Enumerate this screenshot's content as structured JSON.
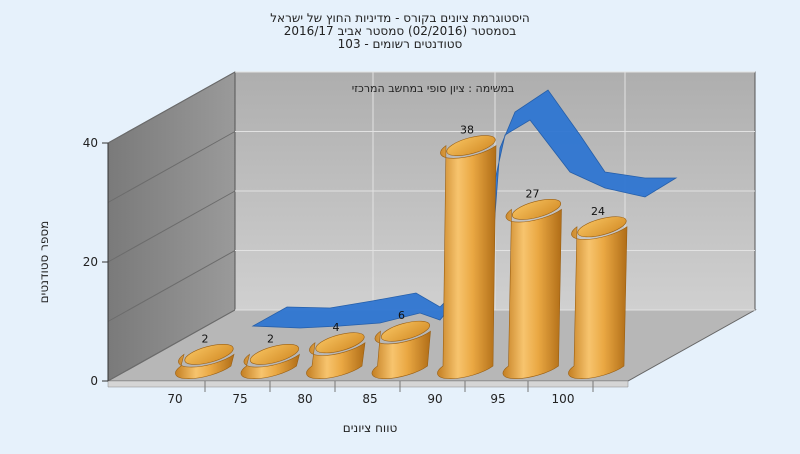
{
  "chart_data": {
    "type": "bar",
    "title_lines": [
      "היסטוגרמת ציונים בקורס - מדיניות החוץ של ישראל",
      "בסמסטר (02/2016) סמסטר אביב 2016/17",
      "סטודנטים רשומים - 103"
    ],
    "subtitle": "במשימה : ציון סופי במחשב המרכזי",
    "xlabel": "טווח ציונים",
    "ylabel": "מספר סטודנטים",
    "categories": [
      "70",
      "75",
      "80",
      "85",
      "90",
      "95",
      "100"
    ],
    "values": [
      2,
      2,
      4,
      6,
      38,
      27,
      24
    ],
    "data_labels": [
      "2",
      "2",
      "4",
      "6",
      "38",
      "27",
      "24"
    ],
    "yticks": [
      "0",
      "20",
      "40"
    ],
    "ylim": [
      0,
      40
    ],
    "grid": true,
    "trend_overlay": "ribbon",
    "colors": {
      "bar": "#e7a63d",
      "bar_highlight": "#fbd58b",
      "bar_shadow": "#b9761b",
      "trend": "#2f76d2",
      "wall_back": "#c4c4c4",
      "wall_side": "#8a8a8a",
      "floor": "#b5b5b5",
      "background": "#e6f1fb"
    }
  }
}
